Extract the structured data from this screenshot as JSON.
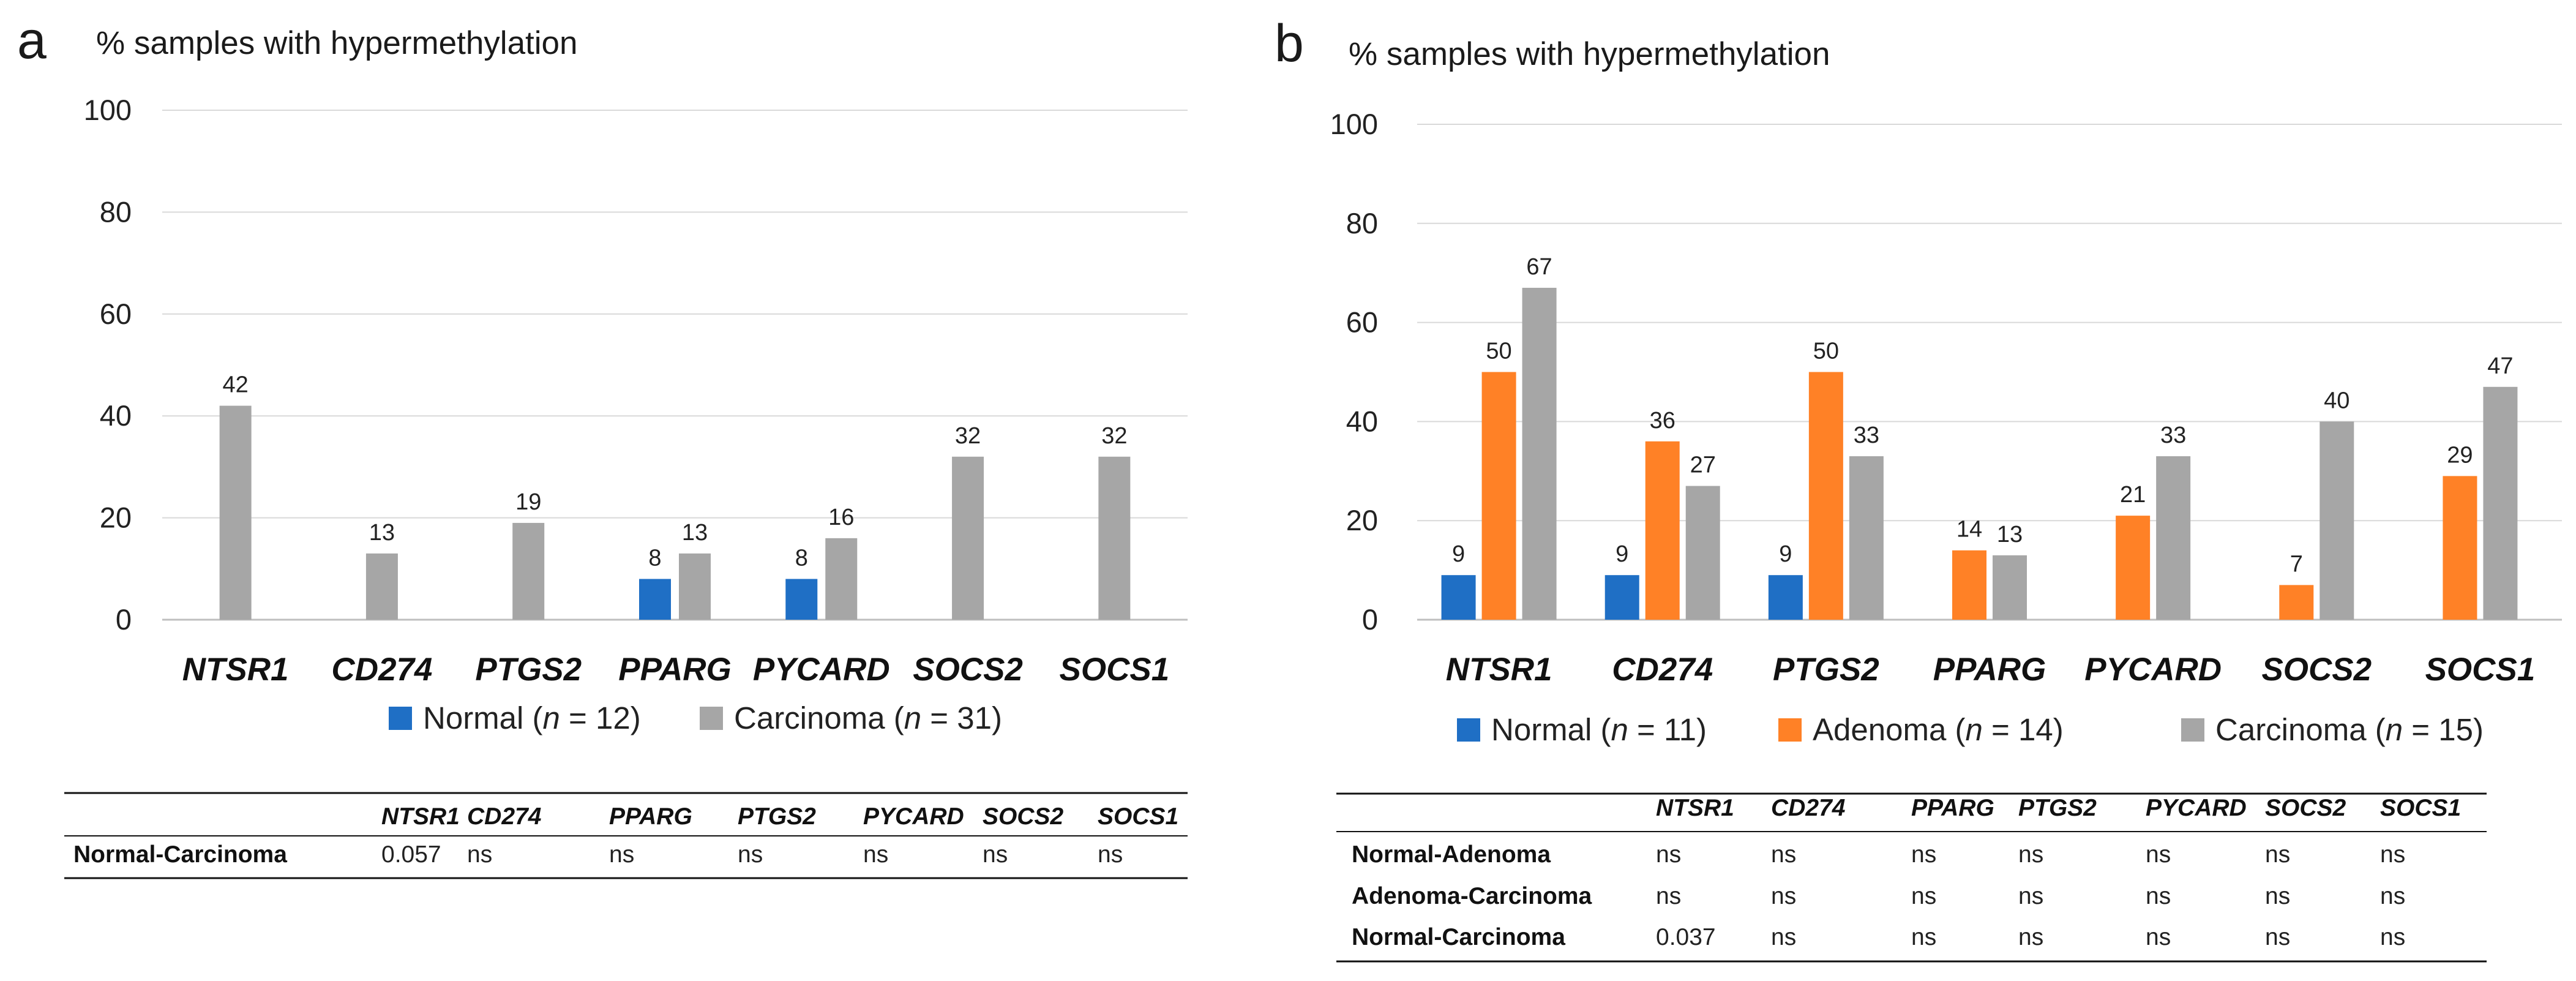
{
  "chart_data": [
    {
      "panel": "a",
      "type": "bar",
      "title": "% samples with hypermethylation",
      "ylim": [
        0,
        100
      ],
      "yticks": [
        0,
        20,
        40,
        60,
        80,
        100
      ],
      "categories": [
        "NTSR1",
        "CD274",
        "PTGS2",
        "PPARG",
        "PYCARD",
        "SOCS2",
        "SOCS1"
      ],
      "series": [
        {
          "name": "Normal",
          "n": "12",
          "color": "#1F6FC5",
          "values": [
            null,
            null,
            null,
            8,
            8,
            null,
            null
          ]
        },
        {
          "name": "Carcinoma",
          "n": "31",
          "color": "#A6A6A6",
          "values": [
            42,
            13,
            19,
            13,
            16,
            32,
            32
          ]
        }
      ],
      "value_labels": {
        "Normal": [
          "",
          "",
          "",
          "8",
          "8",
          "",
          ""
        ],
        "Carcinoma": [
          "42",
          "13",
          "19",
          "13",
          "16",
          "32",
          "32"
        ]
      },
      "table": {
        "columns": [
          "NTSR1",
          "CD274",
          "PPARG",
          "PTGS2",
          "PYCARD",
          "SOCS2",
          "SOCS1"
        ],
        "rows": [
          {
            "label": "Normal-Carcinoma",
            "values": [
              "0.057",
              "ns",
              "ns",
              "ns",
              "ns",
              "ns",
              "ns"
            ]
          }
        ]
      }
    },
    {
      "panel": "b",
      "type": "bar",
      "title": "% samples with hypermethylation",
      "ylim": [
        0,
        100
      ],
      "yticks": [
        0,
        20,
        40,
        60,
        80,
        100
      ],
      "categories": [
        "NTSR1",
        "CD274",
        "PTGS2",
        "PPARG",
        "PYCARD",
        "SOCS2",
        "SOCS1"
      ],
      "series": [
        {
          "name": "Normal",
          "n": "11",
          "color": "#1F6FC5",
          "values": [
            9,
            9,
            9,
            null,
            null,
            null,
            null
          ]
        },
        {
          "name": "Adenoma",
          "n": "14",
          "color": "#FF8126",
          "values": [
            50,
            36,
            50,
            14,
            21,
            7,
            29
          ]
        },
        {
          "name": "Carcinoma",
          "n": "15",
          "color": "#A6A6A6",
          "values": [
            67,
            27,
            33,
            13,
            33,
            40,
            47
          ]
        }
      ],
      "value_labels": {
        "Normal": [
          "9",
          "9",
          "9",
          "",
          "",
          "",
          ""
        ],
        "Adenoma": [
          "50",
          "36",
          "50",
          "14",
          "21",
          "7",
          "29"
        ],
        "Carcinoma": [
          "67",
          "27",
          "33",
          "13",
          "33",
          "40",
          "47"
        ]
      },
      "table": {
        "columns": [
          "NTSR1",
          "CD274",
          "PPARG",
          "PTGS2",
          "PYCARD",
          "SOCS2",
          "SOCS1"
        ],
        "rows": [
          {
            "label": "Normal-Adenoma",
            "values": [
              "ns",
              "ns",
              "ns",
              "ns",
              "ns",
              "ns",
              "ns"
            ]
          },
          {
            "label": "Adenoma-Carcinoma",
            "values": [
              "ns",
              "ns",
              "ns",
              "ns",
              "ns",
              "ns",
              "ns"
            ]
          },
          {
            "label": "Normal-Carcinoma",
            "values": [
              "0.037",
              "ns",
              "ns",
              "ns",
              "ns",
              "ns",
              "ns"
            ]
          }
        ]
      }
    }
  ]
}
